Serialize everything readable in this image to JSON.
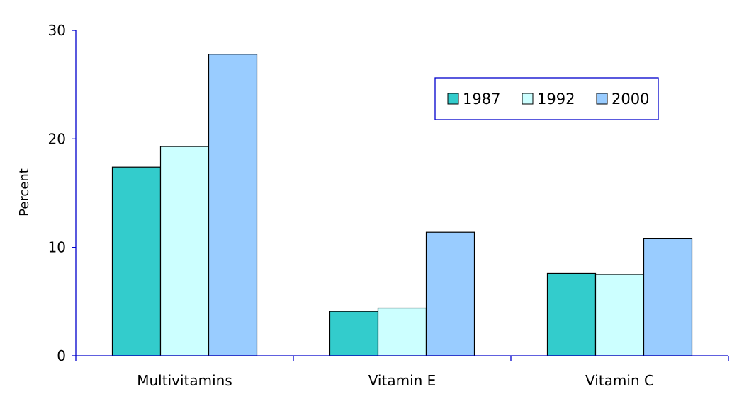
{
  "chart_data": {
    "type": "bar",
    "title": "",
    "xlabel": "",
    "ylabel": "Percent",
    "ylim": [
      0,
      30
    ],
    "yticks": [
      0,
      10,
      20,
      30
    ],
    "categories": [
      "Multivitamins",
      "Vitamin E",
      "Vitamin C"
    ],
    "series": [
      {
        "name": "1987",
        "values": [
          17.4,
          4.1,
          7.6
        ],
        "color": "#33CCCC"
      },
      {
        "name": "1992",
        "values": [
          19.3,
          4.4,
          7.5
        ],
        "color": "#CCFFFF"
      },
      {
        "name": "2000",
        "values": [
          27.8,
          11.4,
          10.8
        ],
        "color": "#99CCFF"
      }
    ],
    "grid": false,
    "legend_position": "top-right",
    "axis_color": "#0000CC",
    "bar_outline_color": "#000000"
  }
}
